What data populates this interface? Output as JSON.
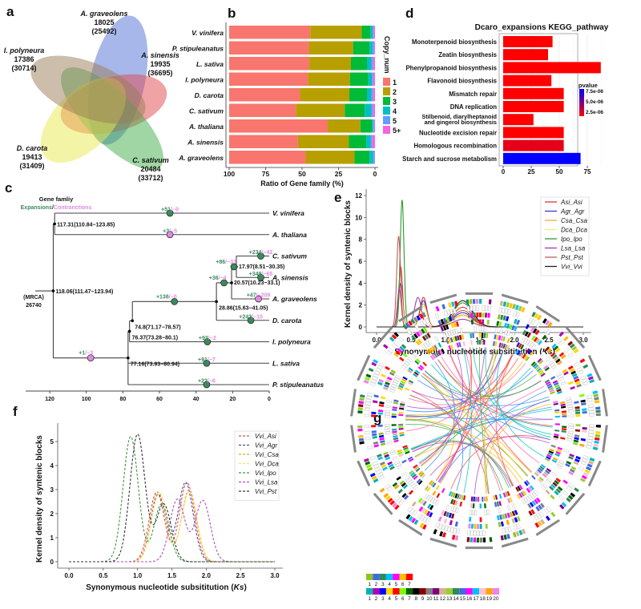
{
  "panel_labels": [
    "a",
    "b",
    "c",
    "d",
    "e",
    "f",
    "g"
  ],
  "chart_data": [
    {
      "panel": "a",
      "type": "venn",
      "sets": [
        {
          "name": "A. graveolens",
          "families": "18025",
          "genes": "(25492)",
          "color": "#4f6fd6"
        },
        {
          "name": "A. sinensis",
          "families": "19935",
          "genes": "(36695)",
          "color": "#e0474c"
        },
        {
          "name": "C. sativum",
          "families": "20484",
          "genes": "(33712)",
          "color": "#3fae49"
        },
        {
          "name": "D. carota",
          "families": "19413",
          "genes": "(31409)",
          "color": "#eaea50"
        },
        {
          "name": "I. polyneura",
          "families": "17386",
          "genes": "(30714)",
          "color": "#9c7b58"
        }
      ]
    },
    {
      "panel": "b",
      "type": "bar",
      "orientation": "horizontal",
      "stacked": true,
      "categories": [
        "V. vinifera",
        "P. stipuleanatus",
        "L. sativa",
        "I. polyneura",
        "D. carota",
        "C. sativum",
        "A. thaliana",
        "A. sinensis",
        "A. graveolens"
      ],
      "series": [
        {
          "name": "1",
          "color": "#f8766d",
          "values": [
            55.6,
            54.7,
            55.0,
            54.0,
            48.6,
            45.7,
            67.6,
            47.2,
            52.5
          ]
        },
        {
          "name": "2",
          "color": "#b79f00",
          "values": [
            35.3,
            30.3,
            28.5,
            28.8,
            33.8,
            33.6,
            22.4,
            34.9,
            33.5
          ]
        },
        {
          "name": "3",
          "color": "#00ba38",
          "values": [
            6.0,
            11.3,
            11.0,
            12.6,
            12.1,
            13.7,
            7.8,
            11.9,
            10.3
          ]
        },
        {
          "name": "4",
          "color": "#00bfc4",
          "values": [
            1.5,
            2.0,
            3.0,
            2.6,
            3.0,
            4.5,
            1.0,
            3.0,
            2.5
          ]
        },
        {
          "name": "5",
          "color": "#619cff",
          "values": [
            0.6,
            1.0,
            1.0,
            0.7,
            1.0,
            1.0,
            0.5,
            1.0,
            1.0
          ]
        },
        {
          "name": "5+",
          "color": "#f564e3",
          "values": [
            1.0,
            0.7,
            1.5,
            1.3,
            1.5,
            1.5,
            0.7,
            2.0,
            0.2
          ]
        }
      ],
      "xlabel": "Ratio of Gene family (%)",
      "xlim": [
        100,
        0
      ],
      "xticks": [
        "100",
        "75",
        "50",
        "25",
        "0"
      ],
      "legend_title": "Copy_num",
      "legend_placement": "right"
    },
    {
      "panel": "c",
      "type": "tree",
      "legend_title": "Gene famliy",
      "legend_expansions": "Expansions",
      "legend_sep": "/",
      "legend_contractions": "Contranctions",
      "expansion_color": "#3b8a5c",
      "contraction_color": "#e08ae0",
      "root_name": "(MRCA)",
      "root_count": "26740",
      "xticks": [
        "120",
        "100",
        "80",
        "60",
        "40",
        "20",
        "0"
      ],
      "xlim": [
        130,
        0
      ],
      "tree": {
        "age": 118.06,
        "label": "118.06(111.47−123.94)",
        "children": [
          {
            "age": 117.31,
            "label": "117.31(110.84−123.85)",
            "children": [
              {
                "name": "V. vinifera",
                "gain": "+51",
                "loss": "/−0"
              },
              {
                "name": "A. thaliana",
                "gain": "+3",
                "loss": "/−5"
              }
            ]
          },
          {
            "age": 77.16,
            "label": "77.16(73.93−80.94)",
            "gain": "+1",
            "loss": "/−3",
            "children": [
              {
                "age": 76.37,
                "label": "76.37(73.28−80.1)",
                "children": [
                  {
                    "age": 74.8,
                    "label": "74.8(71.17−78.57)",
                    "children": [
                      {
                        "age": 28.86,
                        "label": "28.86(15.63−41.05)",
                        "gain": "+136",
                        "loss": "/−0",
                        "children": [
                          {
                            "age": 20.57,
                            "label": "20.57(10.23−33.1)",
                            "gain": "+36",
                            "loss": "/−4",
                            "children": [
                              {
                                "age": 17.97,
                                "label": "17.97(8.51−30.35)",
                                "gain": "+86",
                                "loss": "/−32",
                                "children": [
                                  {
                                    "name": "C. sativum",
                                    "gain": "+234",
                                    "loss": "/−42"
                                  },
                                  {
                                    "name": "A. sinensis",
                                    "gain": "+349",
                                    "loss": "/−65"
                                  }
                                ]
                              },
                              {
                                "name": "A. graveolens",
                                "gain": "+47",
                                "loss": "/−209"
                              }
                            ]
                          },
                          {
                            "name": "D. carota",
                            "gain": "+242",
                            "loss": "/−10"
                          }
                        ]
                      }
                    ]
                  },
                  {
                    "name": "I. polyneura",
                    "gain": "+93",
                    "loss": "/−2"
                  }
                ]
              },
              {
                "name": "L. sativa",
                "gain": "+91",
                "loss": "/−7"
              },
              {
                "name": "P. stipuleanatus",
                "gain": "+22",
                "loss": "/−6"
              }
            ]
          }
        ]
      }
    },
    {
      "panel": "d",
      "type": "bar",
      "orientation": "horizontal",
      "title": "Dcaro_expansions KEGG_pathway",
      "categories": [
        [
          "Monoterpenoid biosynthesis"
        ],
        [
          "Zeatin biosynthesis"
        ],
        [
          "Phenylpropanoid biosynthesis"
        ],
        [
          "Flavonoid biosynthesis"
        ],
        [
          "Mismatch repair"
        ],
        [
          "DNA replication"
        ],
        [
          "Stilbenoid, diarylheptanoid",
          "and gingerol biosynthesis"
        ],
        [
          "Nucleotide excision repair"
        ],
        [
          "Homologous recombination"
        ],
        [
          "Starch and sucrose metabolism"
        ]
      ],
      "values": [
        44,
        40,
        87,
        43,
        54,
        54,
        27,
        54,
        54,
        69
      ],
      "pvalues": [
        2e-06,
        2e-06,
        2e-06,
        2e-06,
        2e-06,
        2e-06,
        2e-06,
        2e-06,
        3e-06,
        7.8e-06
      ],
      "xlim": [
        0,
        95
      ],
      "xticks": [
        "0",
        "25",
        "50",
        "75"
      ],
      "grid": true,
      "legend_title": "pvalue",
      "colorbar_ticks": [
        "7.5e-06",
        "5.0e-06",
        "2.5e-06"
      ],
      "colorbar_colors": [
        "#ff0000",
        "#0000ff"
      ]
    },
    {
      "panel": "e",
      "type": "line",
      "xlabel_pre": "Synonymous nucleotide subsititution (",
      "xlabel_it": "Ks",
      "xlabel_post": ")",
      "ylabel": "Kernel density of syntenic blocks",
      "xlim": [
        0,
        3
      ],
      "ylim": [
        0,
        12
      ],
      "xticks": [
        "0.0",
        "0.5",
        "1.0",
        "1.5",
        "2.0",
        "2.5",
        "3.0"
      ],
      "yticks": [
        "0",
        "2",
        "4",
        "6",
        "8",
        "10",
        "12"
      ],
      "legend_placement": "top-right",
      "series": [
        {
          "name": "Asi_Asi",
          "color": "#d43a3a",
          "peaks": [
            [
              0.35,
              5.5
            ],
            [
              0.68,
              2.7
            ],
            [
              1.25,
              1.8
            ]
          ]
        },
        {
          "name": "Agr_Agr",
          "color": "#3838d0",
          "peaks": [
            [
              0.35,
              4.0
            ],
            [
              0.68,
              2.4
            ],
            [
              1.25,
              1.3
            ]
          ]
        },
        {
          "name": "Csa_Csa",
          "color": "#f2a83a",
          "peaks": [
            [
              0.35,
              3.7
            ],
            [
              0.68,
              2.1
            ],
            [
              1.25,
              1.1
            ]
          ]
        },
        {
          "name": "Dca_Dca",
          "color": "#f4ee70",
          "peaks": [
            [
              0.35,
              3.3
            ],
            [
              0.68,
              1.9
            ],
            [
              1.25,
              1.0
            ]
          ]
        },
        {
          "name": "Ipo_Ipo",
          "color": "#2e9a2e",
          "peaks": [
            [
              0.37,
              11.6
            ],
            [
              1.25,
              2.2
            ]
          ]
        },
        {
          "name": "Lsa_Lsa",
          "color": "#9b3fb0",
          "peaks": [
            [
              0.33,
              3.5
            ],
            [
              0.6,
              2.7
            ],
            [
              1.25,
              0.7
            ]
          ]
        },
        {
          "name": "Pst_Pst",
          "color": "#c25a5a",
          "peaks": [
            [
              0.32,
              8.3
            ],
            [
              1.25,
              1.5
            ]
          ]
        },
        {
          "name": "Vvi_Vvi",
          "color": "#222222",
          "peaks": [
            [
              1.25,
              2.4
            ]
          ]
        }
      ]
    },
    {
      "panel": "f",
      "type": "line",
      "dashed": true,
      "xlabel_pre": "Synonymous nucleotide subsititution (",
      "xlabel_it": "Ks",
      "xlabel_post": ")",
      "ylabel": "Kernel density of syntenic blocks",
      "xlim": [
        0,
        3
      ],
      "ylim": [
        0,
        5.5
      ],
      "xticks": [
        "0.0",
        "0.5",
        "1.0",
        "1.5",
        "2.0",
        "2.5",
        "3.0"
      ],
      "yticks": [
        "0",
        "1",
        "2",
        "3",
        "4",
        "5"
      ],
      "legend_placement": "top-right",
      "series": [
        {
          "name": "Vvi_Asi",
          "color": "#e0554a",
          "peaks": [
            [
              1.28,
              2.9
            ],
            [
              1.72,
              3.3
            ]
          ]
        },
        {
          "name": "Vvi_Agr",
          "color": "#4a4ab8",
          "peaks": [
            [
              1.3,
              2.8
            ],
            [
              1.7,
              3.3
            ]
          ]
        },
        {
          "name": "Vvi_Csa",
          "color": "#f0a030",
          "peaks": [
            [
              1.3,
              2.9
            ],
            [
              1.75,
              3.0
            ]
          ]
        },
        {
          "name": "Vvi_Dca",
          "color": "#f2e860",
          "peaks": [
            [
              1.32,
              2.9
            ],
            [
              1.75,
              2.9
            ]
          ]
        },
        {
          "name": "Vvi_Ipo",
          "color": "#3a9a3a",
          "peaks": [
            [
              0.9,
              5.2
            ],
            [
              1.35,
              2.4
            ]
          ]
        },
        {
          "name": "Vvi_Lsa",
          "color": "#b050b8",
          "peaks": [
            [
              1.58,
              2.6
            ],
            [
              1.95,
              2.55
            ]
          ]
        },
        {
          "name": "Vvi_Pst",
          "color": "#333344",
          "peaks": [
            [
              1.0,
              5.3
            ],
            [
              1.38,
              2.4
            ]
          ]
        }
      ]
    },
    {
      "panel": "g",
      "type": "circos",
      "legend_row1": {
        "labels": [
          "1",
          "2",
          "3",
          "4",
          "5",
          "6",
          "7"
        ],
        "colors": [
          "#8fc31f",
          "#4169e1",
          "#2e8b57",
          "#00bfff",
          "#ff00ff",
          "#ffc000",
          "#ff0000"
        ]
      },
      "legend_row2": {
        "labels": [
          "1",
          "2",
          "3",
          "4",
          "5",
          "6",
          "7",
          "8",
          "9",
          "10",
          "11",
          "12",
          "13",
          "14",
          "15",
          "16",
          "17",
          "18",
          "19",
          "20"
        ],
        "colors": [
          "#00b3b3",
          "#b000b0",
          "#0000ff",
          "#ffd700",
          "#ff0000",
          "#7cfc00",
          "#006400",
          "#000000",
          "#8b0000",
          "#808080",
          "#800080",
          "#d2b48c",
          "#9acd32",
          "#2e8b57",
          "#4169e1",
          "#ff00ff",
          "#00bfff",
          "#ffc0cb",
          "#ffa500",
          "#ee82ee"
        ]
      }
    }
  ]
}
